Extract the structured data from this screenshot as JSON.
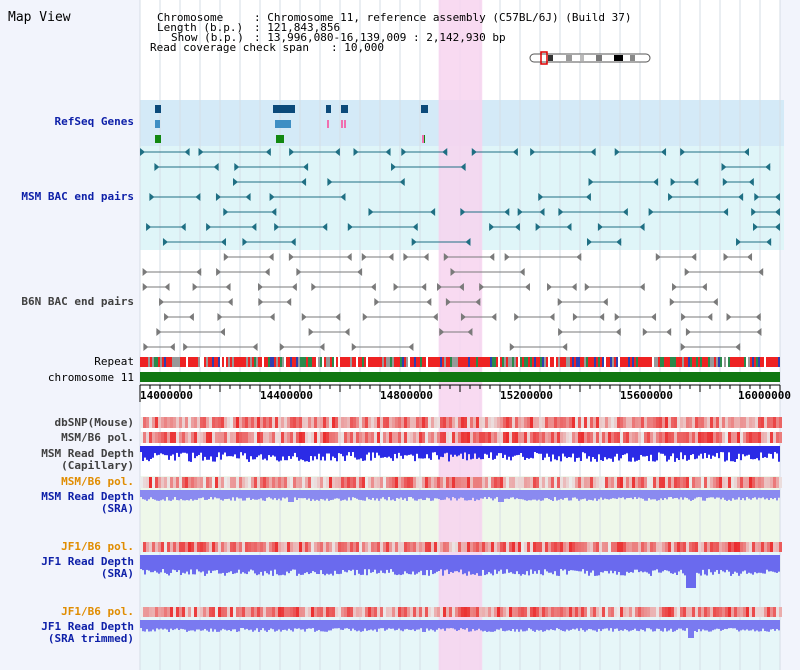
{
  "title": "Map View",
  "chromosome_info": {
    "chromosome_key": "Chromosome",
    "chromosome_val": "Chromosome 11, reference assembly (C57BL/6J) (Build 37)",
    "length_key": "Length (b.p.)",
    "length_val": "121,843,856",
    "show_key": "Show (b.p.)",
    "show_val": "13,996,080-16,139,009 : 2,142,930 bp",
    "coverage_key": "Read coverage check span",
    "coverage_val": "10,000"
  },
  "tracks": {
    "refseq": "RefSeq Genes",
    "msm_bac": "MSM BAC end pairs",
    "b6n_bac": "B6N BAC end pairs",
    "repeat": "Repeat",
    "chromosome": "chromosome 11",
    "dbsnp": "dbSNP(Mouse)",
    "msm_b6_pol1": "MSM/B6 pol.",
    "msm_rd_cap_1": "MSM Read Depth",
    "msm_rd_cap_2": "(Capillary)",
    "msm_b6_pol2": "MSM/B6 pol.",
    "msm_rd_sra_1": "MSM Read Depth",
    "msm_rd_sra_2": "(SRA)",
    "jf1_pol1": "JF1/B6 pol.",
    "jf1_rd_sra_1": "JF1 Read Depth",
    "jf1_rd_sra_2": "(SRA)",
    "jf1_pol2": "JF1/B6 pol.",
    "jf1_rd_trim_1": "JF1 Read Depth",
    "jf1_rd_trim_2": "(SRA trimmed)"
  },
  "axis": {
    "view_start": 13996080,
    "view_end": 16139009,
    "ticks": [
      "14000000",
      "14400000",
      "14800000",
      "15200000",
      "15600000",
      "16000000"
    ],
    "highlight_range": [
      14996000,
      15142000
    ]
  },
  "colors": {
    "highlight": "#f7d3ef",
    "refseq_bg": "#d4eaf7",
    "msm_bg": "#dff5f8",
    "chromosome_bar": "#117711",
    "read_depth": "#3a3ae8",
    "polymorphism": "#e83a3a",
    "label_blue": "#0d1fa8",
    "label_orange": "#e08c00"
  }
}
